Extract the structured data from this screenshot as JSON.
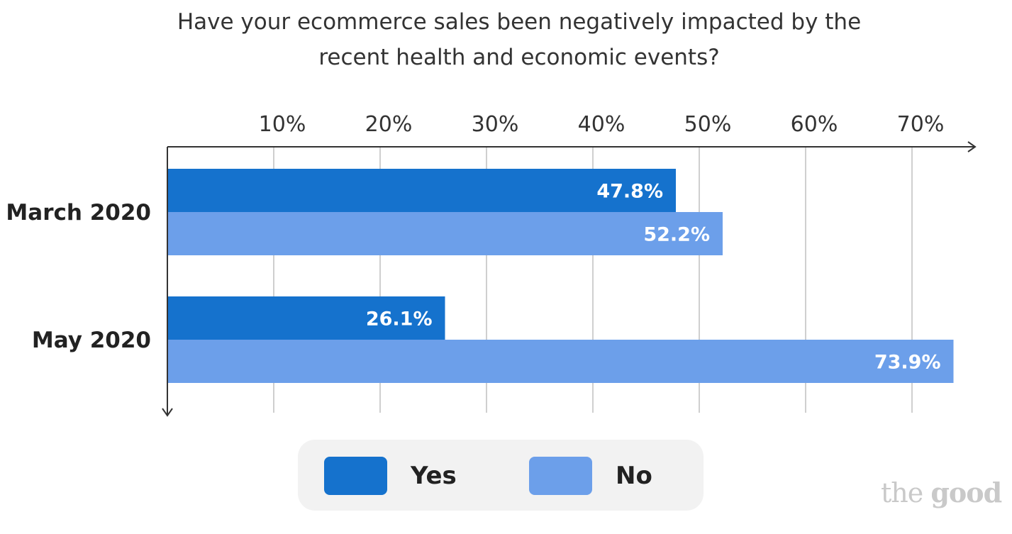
{
  "chart_data": {
    "type": "bar",
    "orientation": "horizontal",
    "title_lines": [
      "Have your ecommerce sales been negatively impacted by the",
      "recent health and economic events?"
    ],
    "categories": [
      "March 2020",
      "May 2020"
    ],
    "series": [
      {
        "name": "Yes",
        "color": "#1572cd",
        "values": [
          47.8,
          26.1
        ],
        "labels": [
          "47.8%",
          "26.1%"
        ]
      },
      {
        "name": "No",
        "color": "#6c9fea",
        "values": [
          52.2,
          73.9
        ],
        "labels": [
          "52.2%",
          "73.9%"
        ]
      }
    ],
    "x_ticks": [
      {
        "value": 10,
        "label": "10%"
      },
      {
        "value": 20,
        "label": "20%"
      },
      {
        "value": 30,
        "label": "30%"
      },
      {
        "value": 40,
        "label": "40%"
      },
      {
        "value": 50,
        "label": "50%"
      },
      {
        "value": 60,
        "label": "60%"
      },
      {
        "value": 70,
        "label": "70%"
      }
    ],
    "xlim": [
      0,
      76
    ],
    "x_axis_position": "top",
    "grid": true,
    "legend_position": "bottom"
  },
  "branding": {
    "logo_text": "the good",
    "logo_color": "#c9c9c9"
  }
}
